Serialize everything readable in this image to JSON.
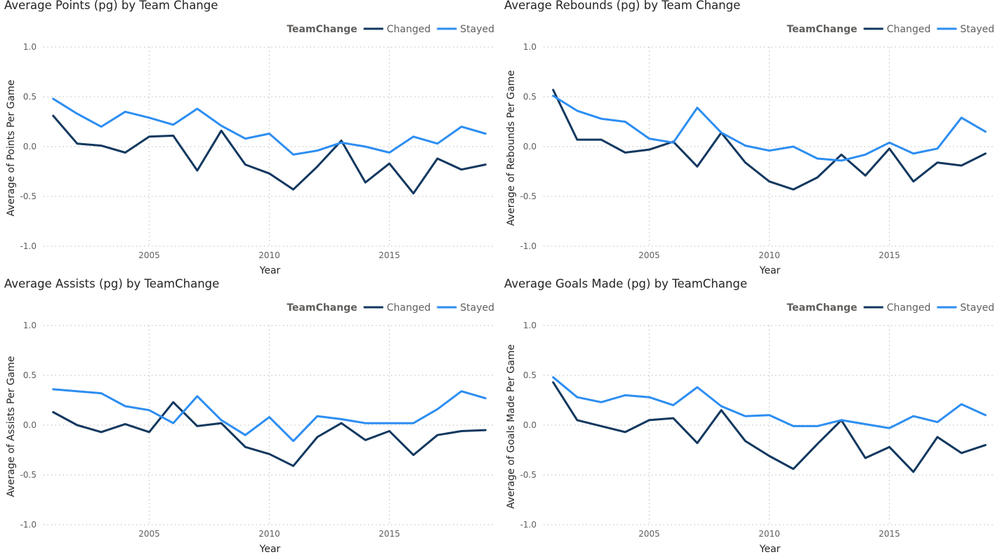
{
  "charts": [
    {
      "title": "Average Points (pg) by Team Change",
      "chart_data": {
        "type": "line",
        "title": "Average Points (pg) by Team Change",
        "xlabel": "Year",
        "ylabel": "Average of Points Per Game",
        "legend_title": "TeamChange",
        "legend_position": "top-right",
        "x": [
          2001,
          2002,
          2003,
          2004,
          2005,
          2006,
          2007,
          2008,
          2009,
          2010,
          2011,
          2012,
          2013,
          2014,
          2015,
          2016,
          2017,
          2018,
          2019
        ],
        "xlim": [
          2000.6,
          2019.4
        ],
        "ylim": [
          -1.0,
          1.0
        ],
        "x_ticks": [
          2005,
          2010,
          2015
        ],
        "y_ticks": [
          "1.0",
          "0.5",
          "0.0",
          "-0.5",
          "-1.0"
        ],
        "grid": true,
        "series": [
          {
            "name": "Changed",
            "color": "#12385f",
            "values": [
              0.31,
              0.03,
              0.01,
              -0.06,
              0.1,
              0.11,
              -0.24,
              0.16,
              -0.18,
              -0.27,
              -0.43,
              -0.2,
              0.06,
              -0.36,
              -0.17,
              -0.47,
              -0.12,
              -0.23,
              -0.18
            ]
          },
          {
            "name": "Stayed",
            "color": "#2d8ef1",
            "values": [
              0.48,
              0.33,
              0.2,
              0.35,
              0.29,
              0.22,
              0.38,
              0.21,
              0.08,
              0.13,
              -0.08,
              -0.04,
              0.04,
              0.0,
              -0.06,
              0.1,
              0.03,
              0.2,
              0.13
            ]
          }
        ]
      }
    },
    {
      "title": "Average Rebounds (pg) by Team Change",
      "chart_data": {
        "type": "line",
        "title": "Average Rebounds (pg) by Team Change",
        "xlabel": "Year",
        "ylabel": "Average of Rebounds Per Game",
        "legend_title": "TeamChange",
        "legend_position": "top-right",
        "x": [
          2001,
          2002,
          2003,
          2004,
          2005,
          2006,
          2007,
          2008,
          2009,
          2010,
          2011,
          2012,
          2013,
          2014,
          2015,
          2016,
          2017,
          2018,
          2019
        ],
        "xlim": [
          2000.6,
          2019.4
        ],
        "ylim": [
          -1.0,
          1.0
        ],
        "x_ticks": [
          2005,
          2010,
          2015
        ],
        "y_ticks": [
          "1.0",
          "0.5",
          "0.0",
          "-0.5",
          "-1.0"
        ],
        "grid": true,
        "series": [
          {
            "name": "Changed",
            "color": "#12385f",
            "values": [
              0.57,
              0.07,
              0.07,
              -0.06,
              -0.03,
              0.05,
              -0.2,
              0.14,
              -0.16,
              -0.35,
              -0.43,
              -0.31,
              -0.08,
              -0.29,
              -0.02,
              -0.35,
              -0.16,
              -0.19,
              -0.07
            ]
          },
          {
            "name": "Stayed",
            "color": "#2d8ef1",
            "values": [
              0.51,
              0.36,
              0.28,
              0.25,
              0.08,
              0.04,
              0.39,
              0.14,
              0.01,
              -0.04,
              0.0,
              -0.12,
              -0.14,
              -0.08,
              0.04,
              -0.07,
              -0.02,
              0.29,
              0.15
            ]
          }
        ]
      }
    },
    {
      "title": "Average Assists (pg) by TeamChange",
      "chart_data": {
        "type": "line",
        "title": "Average Assists (pg) by TeamChange",
        "xlabel": "Year",
        "ylabel": "Average of Assists Per Game",
        "legend_title": "TeamChange",
        "legend_position": "top-right",
        "x": [
          2001,
          2002,
          2003,
          2004,
          2005,
          2006,
          2007,
          2008,
          2009,
          2010,
          2011,
          2012,
          2013,
          2014,
          2015,
          2016,
          2017,
          2018,
          2019
        ],
        "xlim": [
          2000.6,
          2019.4
        ],
        "ylim": [
          -1.0,
          1.0
        ],
        "x_ticks": [
          2005,
          2010,
          2015
        ],
        "y_ticks": [
          "1.0",
          "0.5",
          "0.0",
          "-0.5",
          "-1.0"
        ],
        "grid": true,
        "series": [
          {
            "name": "Changed",
            "color": "#12385f",
            "values": [
              0.13,
              0.0,
              -0.07,
              0.01,
              -0.07,
              0.23,
              -0.01,
              0.02,
              -0.22,
              -0.29,
              -0.41,
              -0.12,
              0.02,
              -0.15,
              -0.06,
              -0.3,
              -0.1,
              -0.06,
              -0.05
            ]
          },
          {
            "name": "Stayed",
            "color": "#2d8ef1",
            "values": [
              0.36,
              0.34,
              0.32,
              0.19,
              0.15,
              0.02,
              0.29,
              0.05,
              -0.1,
              0.08,
              -0.16,
              0.09,
              0.06,
              0.02,
              0.02,
              0.02,
              0.16,
              0.34,
              0.27
            ]
          }
        ]
      }
    },
    {
      "title": "Average Goals Made (pg) by TeamChange",
      "chart_data": {
        "type": "line",
        "title": "Average Goals Made (pg) by TeamChange",
        "xlabel": "Year",
        "ylabel": "Average of Goals Made Per Game",
        "legend_title": "TeamChange",
        "legend_position": "top-right",
        "x": [
          2001,
          2002,
          2003,
          2004,
          2005,
          2006,
          2007,
          2008,
          2009,
          2010,
          2011,
          2012,
          2013,
          2014,
          2015,
          2016,
          2017,
          2018,
          2019
        ],
        "xlim": [
          2000.6,
          2019.4
        ],
        "ylim": [
          -1.0,
          1.0
        ],
        "x_ticks": [
          2005,
          2010,
          2015
        ],
        "y_ticks": [
          "1.0",
          "0.5",
          "0.0",
          "-0.5",
          "-1.0"
        ],
        "grid": true,
        "series": [
          {
            "name": "Changed",
            "color": "#12385f",
            "values": [
              0.43,
              0.05,
              -0.01,
              -0.07,
              0.05,
              0.07,
              -0.18,
              0.15,
              -0.16,
              -0.31,
              -0.44,
              -0.19,
              0.05,
              -0.33,
              -0.22,
              -0.47,
              -0.12,
              -0.28,
              -0.2
            ]
          },
          {
            "name": "Stayed",
            "color": "#2d8ef1",
            "values": [
              0.48,
              0.28,
              0.23,
              0.3,
              0.28,
              0.2,
              0.38,
              0.19,
              0.09,
              0.1,
              -0.01,
              -0.01,
              0.05,
              0.01,
              -0.03,
              0.09,
              0.03,
              0.21,
              0.1
            ]
          }
        ]
      }
    }
  ]
}
